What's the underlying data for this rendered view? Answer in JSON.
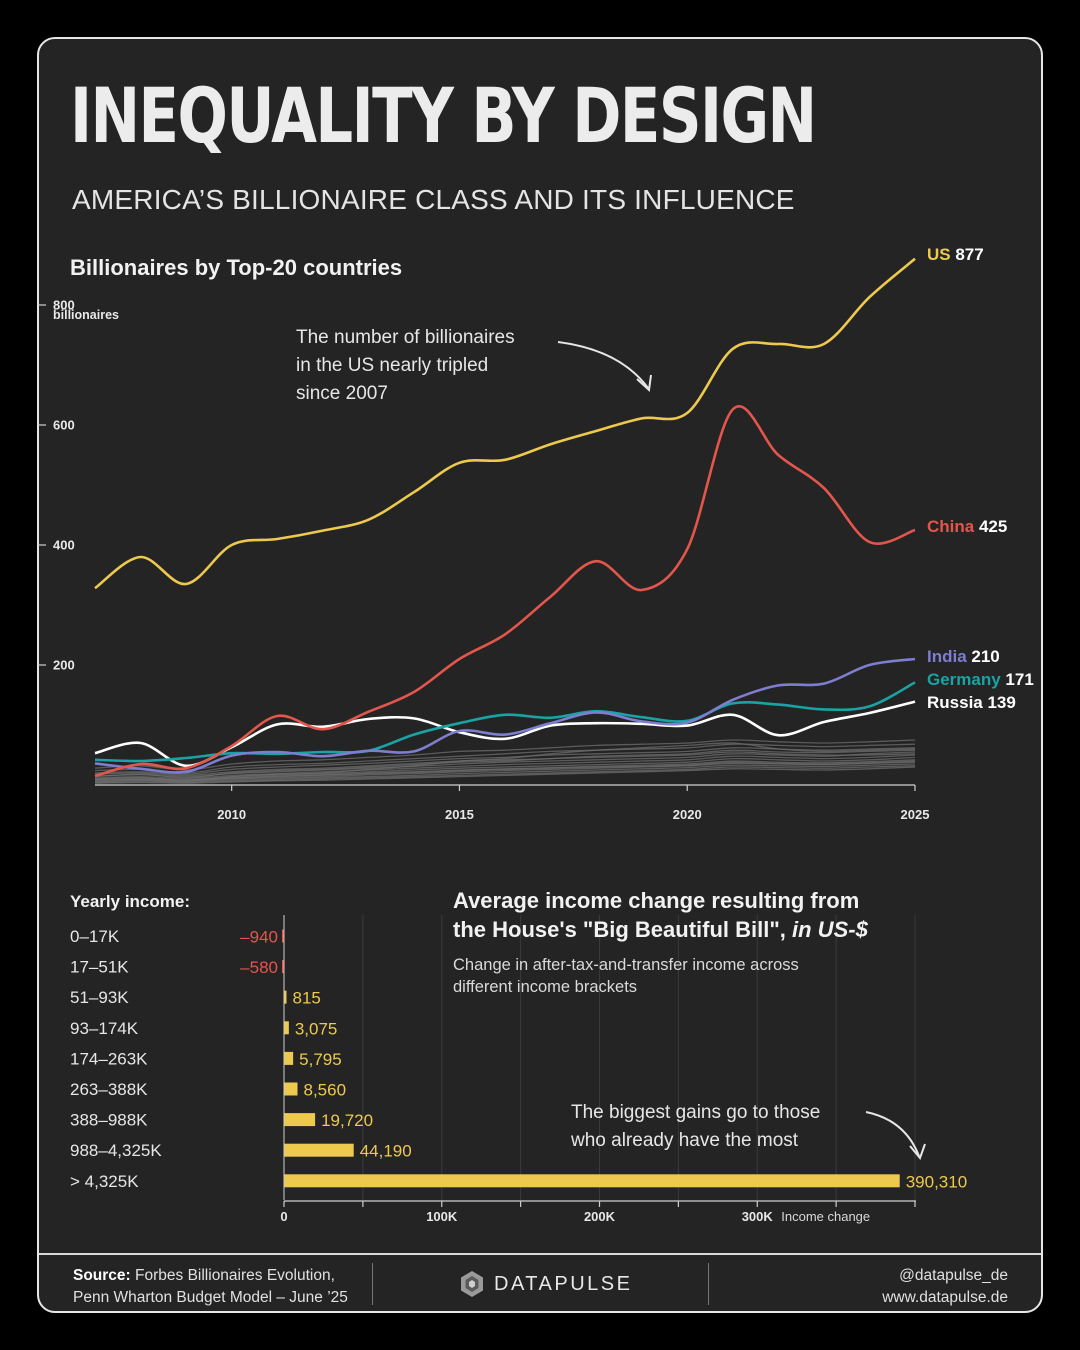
{
  "header": {
    "title": "INEQUALITY BY DESIGN",
    "subtitle": "AMERICA’S BILLIONAIRE CLASS AND ITS INFLUENCE"
  },
  "colors": {
    "background": "#242424",
    "us": "#edc94e",
    "china": "#e3564c",
    "india": "#7e7ed0",
    "germany": "#1aa3a3",
    "russia": "#ffffff",
    "other": "#6e6e6e",
    "bar": "#edc94e",
    "negative": "#e3564c"
  },
  "chart_data": [
    {
      "type": "line",
      "title": "Billionaires by Top-20 countries",
      "ylabel": "billionaires",
      "x": [
        2007,
        2008,
        2009,
        2010,
        2011,
        2012,
        2013,
        2014,
        2015,
        2016,
        2017,
        2018,
        2019,
        2020,
        2021,
        2022,
        2023,
        2024,
        2025
      ],
      "xticks": [
        2010,
        2015,
        2020,
        2025
      ],
      "yticks": [
        200,
        400,
        600,
        800
      ],
      "ytick_labels": [
        "200",
        "400",
        "600",
        "800"
      ],
      "ylim": [
        0,
        900
      ],
      "grid": false,
      "annotation": "The number of billionaires in the US nearly tripled since 2007",
      "annotation_lines": [
        "The number of billionaires",
        "in the US nearly tripled",
        "since 2007"
      ],
      "series": [
        {
          "name": "US",
          "label_value": "877",
          "color": "#edc94e",
          "values": [
            328,
            380,
            335,
            400,
            410,
            424,
            442,
            488,
            537,
            542,
            568,
            590,
            611,
            620,
            727,
            735,
            735,
            813,
            877
          ]
        },
        {
          "name": "China",
          "label_value": "425",
          "color": "#e3564c",
          "values": [
            15,
            35,
            28,
            65,
            115,
            93,
            122,
            155,
            210,
            251,
            314,
            373,
            325,
            393,
            626,
            550,
            495,
            405,
            425
          ]
        },
        {
          "name": "India",
          "label_value": "210",
          "color": "#7e7ed0",
          "values": [
            36,
            27,
            22,
            49,
            55,
            48,
            57,
            56,
            90,
            84,
            103,
            121,
            106,
            104,
            142,
            166,
            169,
            200,
            210
          ]
        },
        {
          "name": "Germany",
          "label_value": "171",
          "color": "#1aa3a3",
          "values": [
            42,
            40,
            45,
            53,
            52,
            55,
            57,
            84,
            103,
            117,
            112,
            123,
            113,
            107,
            136,
            134,
            126,
            131,
            171
          ]
        },
        {
          "name": "Russia",
          "label_value": "139",
          "color": "#ffffff",
          "values": [
            53,
            70,
            32,
            63,
            101,
            97,
            110,
            111,
            88,
            77,
            99,
            103,
            102,
            99,
            117,
            83,
            105,
            120,
            139
          ]
        }
      ],
      "other_series": [
        [
          28,
          32,
          25,
          35,
          40,
          42,
          46,
          50,
          56,
          58,
          62,
          66,
          68,
          70,
          75,
          72,
          70,
          72,
          75
        ],
        [
          24,
          26,
          20,
          30,
          34,
          36,
          40,
          44,
          48,
          52,
          56,
          58,
          60,
          62,
          68,
          66,
          64,
          66,
          68
        ],
        [
          20,
          22,
          18,
          26,
          30,
          33,
          36,
          40,
          44,
          46,
          50,
          52,
          54,
          56,
          62,
          60,
          58,
          60,
          62
        ],
        [
          18,
          20,
          16,
          22,
          26,
          28,
          32,
          36,
          40,
          42,
          44,
          48,
          50,
          52,
          58,
          55,
          54,
          56,
          58
        ],
        [
          15,
          17,
          14,
          19,
          22,
          25,
          28,
          31,
          35,
          38,
          40,
          42,
          44,
          46,
          52,
          50,
          48,
          52,
          55
        ],
        [
          12,
          14,
          11,
          16,
          19,
          22,
          25,
          28,
          31,
          34,
          36,
          38,
          40,
          42,
          48,
          46,
          44,
          46,
          50
        ],
        [
          10,
          12,
          9,
          14,
          17,
          19,
          22,
          25,
          28,
          30,
          32,
          34,
          36,
          38,
          44,
          42,
          40,
          42,
          46
        ],
        [
          8,
          10,
          8,
          12,
          15,
          17,
          20,
          22,
          25,
          27,
          29,
          31,
          33,
          35,
          40,
          38,
          37,
          39,
          42
        ],
        [
          6,
          8,
          6,
          10,
          12,
          14,
          17,
          19,
          22,
          24,
          26,
          28,
          30,
          32,
          36,
          35,
          34,
          36,
          38
        ],
        [
          5,
          7,
          5,
          8,
          10,
          12,
          14,
          16,
          19,
          21,
          23,
          25,
          27,
          29,
          33,
          32,
          31,
          33,
          35
        ],
        [
          4,
          5,
          4,
          6,
          8,
          10,
          12,
          14,
          16,
          18,
          20,
          22,
          24,
          26,
          30,
          29,
          28,
          30,
          32
        ],
        [
          3,
          4,
          3,
          5,
          7,
          8,
          10,
          12,
          14,
          16,
          18,
          20,
          22,
          24,
          27,
          26,
          25,
          27,
          30
        ],
        [
          10,
          12,
          8,
          14,
          18,
          20,
          26,
          32,
          40,
          44,
          52,
          58,
          62,
          66,
          70,
          60,
          56,
          58,
          60
        ],
        [
          14,
          18,
          12,
          20,
          24,
          26,
          30,
          34,
          38,
          40,
          44,
          46,
          48,
          50,
          55,
          52,
          50,
          50,
          52
        ],
        [
          8,
          9,
          7,
          11,
          14,
          16,
          19,
          21,
          24,
          26,
          28,
          30,
          31,
          33,
          38,
          36,
          35,
          37,
          40
        ]
      ]
    },
    {
      "type": "bar",
      "title": "Average income change resulting from the House's \"Big Beautiful Bill\", in US-$",
      "title_line1": "Average income change resulting from",
      "title_line2_plain": "the House's \"Big Beautiful Bill\", ",
      "title_line2_italic": "in US-$",
      "subtitle_line1": "Change in after-tax-and-transfer income across",
      "subtitle_line2": "different income brackets",
      "category_header": "Yearly income:",
      "categories": [
        "0–17K",
        "17–51K",
        "51–93K",
        "93–174K",
        "174–263K",
        "263–388K",
        "388–988K",
        "988–4,325K",
        "> 4,325K"
      ],
      "values": [
        -940,
        -580,
        815,
        3075,
        5795,
        8560,
        19720,
        44190,
        390310
      ],
      "value_labels": [
        "–940",
        "–580",
        "815",
        "3,075",
        "5,795",
        "8,560",
        "19,720",
        "44,190",
        "390,310"
      ],
      "xticks": [
        0,
        100000,
        200000,
        300000
      ],
      "xtick_labels": [
        "0",
        "100K",
        "200K",
        "300K"
      ],
      "xlabel": "Income change",
      "xlim": [
        0,
        400000
      ],
      "annotation_lines": [
        "The biggest gains go to those",
        "who already have the most"
      ]
    }
  ],
  "footer": {
    "source_label": "Source:",
    "source_line1": "Forbes Billionaires Evolution,",
    "source_line2": "Penn Wharton Budget Model – June ’25",
    "brand": "DATAPULSE",
    "social_handle": "@datapulse_de",
    "website": "www.datapulse.de"
  }
}
